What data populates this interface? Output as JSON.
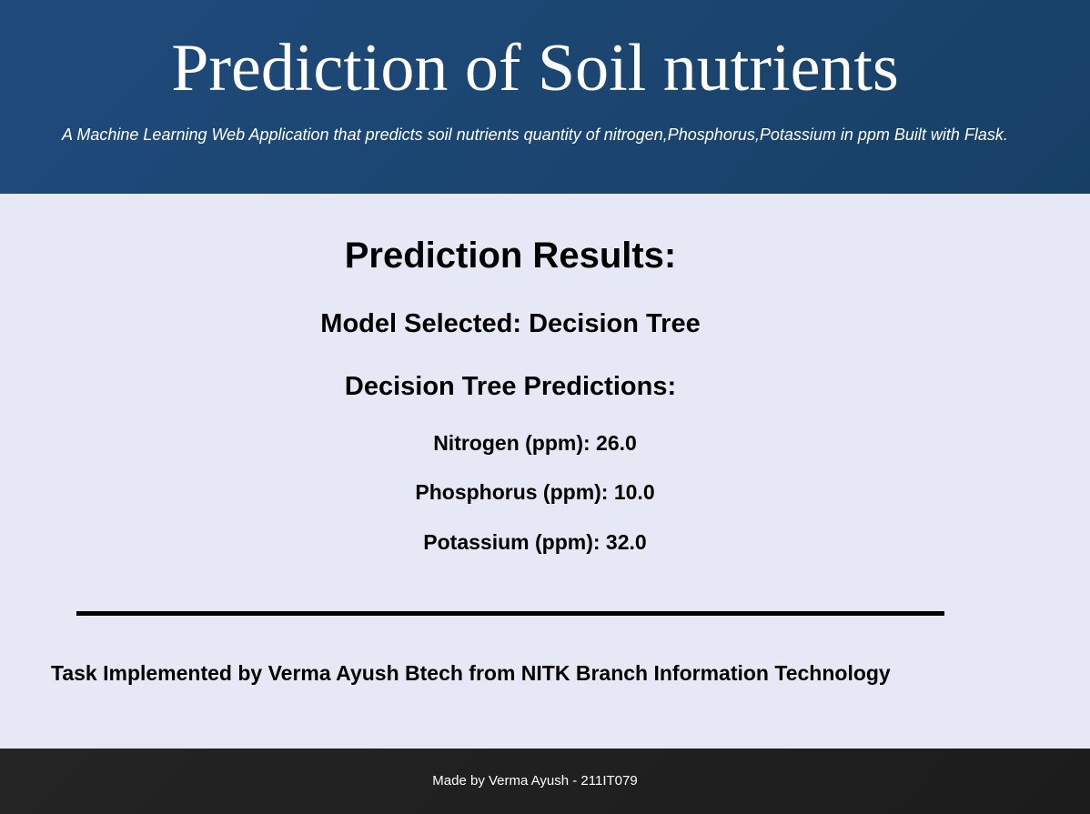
{
  "header": {
    "title": "Prediction of Soil nutrients",
    "subtitle": "A Machine Learning Web Application that predicts soil nutrients quantity of nitrogen,Phosphorus,Potassium in ppm Built with Flask."
  },
  "results": {
    "heading": "Prediction Results:",
    "model_selected": "Model Selected: Decision Tree",
    "predictions_heading": "Decision Tree Predictions:",
    "nitrogen": "Nitrogen (ppm): 26.0",
    "phosphorus": "Phosphorus (ppm): 10.0",
    "potassium": "Potassium (ppm): 32.0"
  },
  "credit": "Task Implemented by Verma Ayush Btech from NITK Branch Information Technology",
  "footer": {
    "text": "Made by Verma Ayush - 211IT079"
  },
  "colors": {
    "header_background": "#1b456f",
    "page_background": "#e6e8f6",
    "footer_background": "#1f1f1f"
  }
}
